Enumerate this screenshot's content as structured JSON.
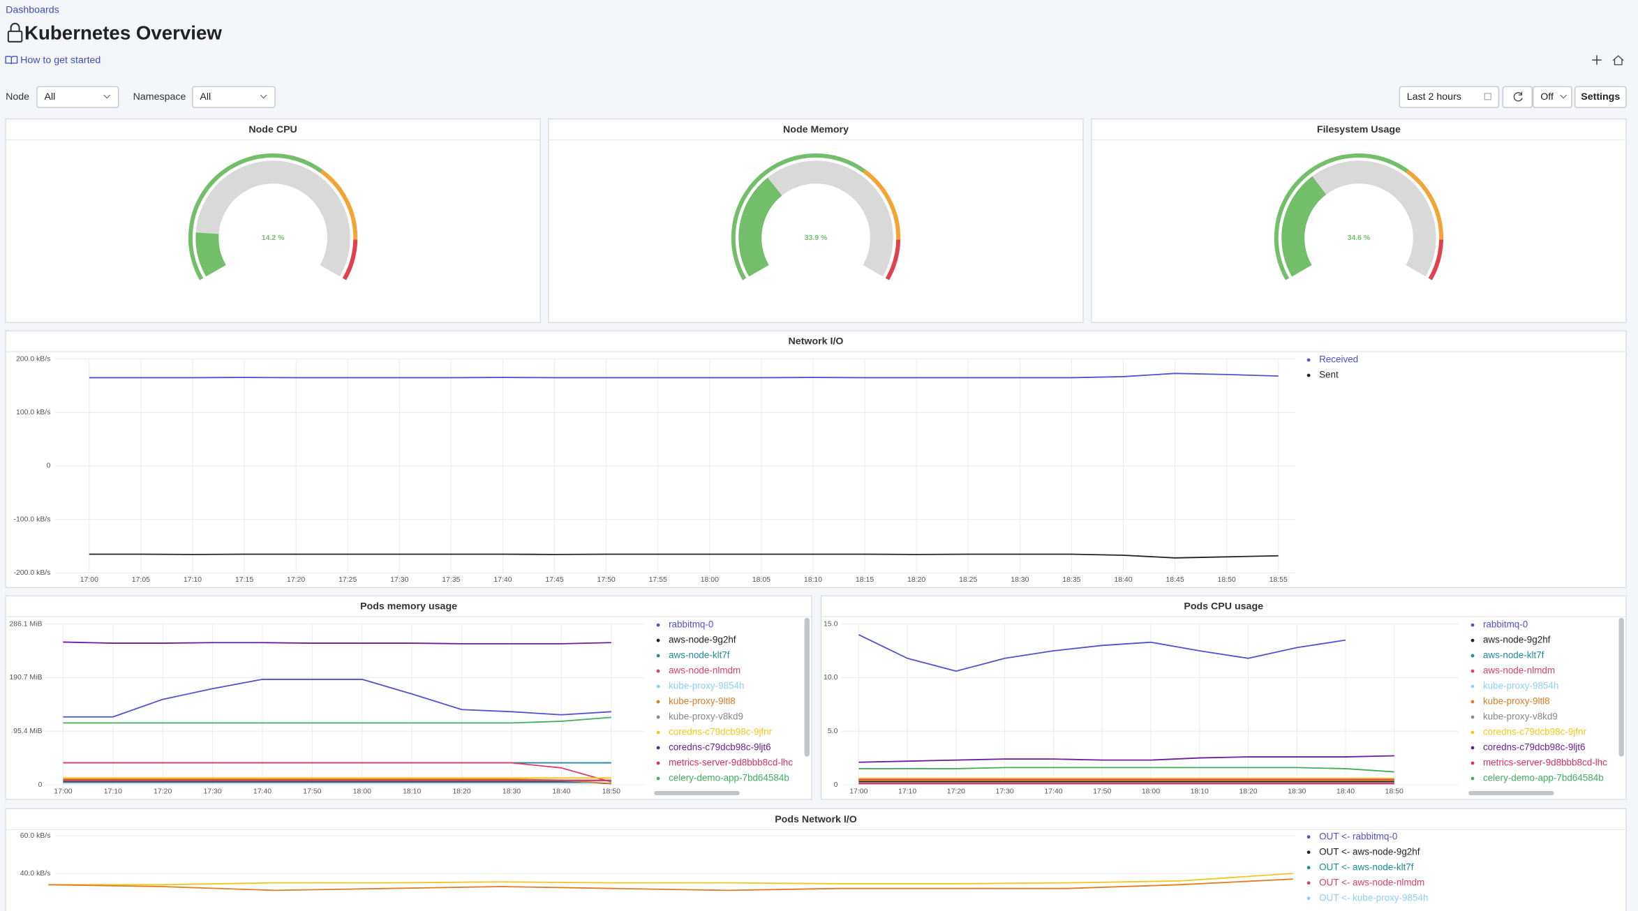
{
  "header": {
    "breadcrumb": "Dashboards",
    "title": "Kubernetes Overview",
    "help_link": "How to get started"
  },
  "filters": [
    {
      "label": "Node",
      "value": "All"
    },
    {
      "label": "Namespace",
      "value": "All"
    }
  ],
  "toolbar": {
    "time_range": "Last 2 hours",
    "refresh": "Off",
    "settings": "Settings"
  },
  "chart_data": [
    {
      "type": "gauge",
      "title": "Node CPU",
      "value": 14.2,
      "value_label": "14.2 %",
      "ylim": [
        0,
        100
      ],
      "thresholds": [
        {
          "value": 0,
          "color": "#73bf69"
        },
        {
          "value": 65,
          "color": "#f2a435"
        },
        {
          "value": 88,
          "color": "#e0424d"
        }
      ]
    },
    {
      "type": "gauge",
      "title": "Node Memory",
      "value": 33.9,
      "value_label": "33.9 %",
      "ylim": [
        0,
        100
      ],
      "thresholds": [
        {
          "value": 0,
          "color": "#73bf69"
        },
        {
          "value": 65,
          "color": "#f2a435"
        },
        {
          "value": 88,
          "color": "#e0424d"
        }
      ]
    },
    {
      "type": "gauge",
      "title": "Filesystem Usage",
      "value": 34.6,
      "value_label": "34.6 %",
      "ylim": [
        0,
        100
      ],
      "thresholds": [
        {
          "value": 0,
          "color": "#73bf69"
        },
        {
          "value": 65,
          "color": "#f2a435"
        },
        {
          "value": 88,
          "color": "#e0424d"
        }
      ]
    },
    {
      "type": "line",
      "title": "Network I/O",
      "x": [
        "17:00",
        "17:05",
        "17:10",
        "17:15",
        "17:20",
        "17:25",
        "17:30",
        "17:35",
        "17:40",
        "17:45",
        "17:50",
        "17:55",
        "18:00",
        "18:05",
        "18:10",
        "18:15",
        "18:20",
        "18:25",
        "18:30",
        "18:35",
        "18:40",
        "18:45",
        "18:50",
        "18:55"
      ],
      "ylim": [
        -200,
        200
      ],
      "yticks": [
        {
          "value": 200,
          "label": "200.0  kB/s"
        },
        {
          "value": 100,
          "label": "100.0  kB/s"
        },
        0,
        {
          "value": -100,
          "label": "-100.0  kB/s"
        },
        {
          "value": -200,
          "label": "-200.0  kB/s"
        }
      ],
      "grid": true,
      "series": [
        {
          "name": "Received",
          "color": "#5050d0",
          "values": [
            165,
            165,
            165,
            165.5,
            165,
            165,
            165,
            165,
            165.5,
            165,
            165,
            165,
            165,
            165,
            165.5,
            165,
            165,
            165,
            165,
            165,
            167,
            173,
            171,
            168
          ]
        },
        {
          "name": "Sent",
          "color": "#222222",
          "values": [
            -165,
            -165,
            -165.5,
            -165,
            -165,
            -165,
            -165,
            -165,
            -165,
            -165.5,
            -165,
            -165,
            -165,
            -165,
            -165,
            -165,
            -165.5,
            -165,
            -165,
            -165,
            -167,
            -172,
            -170,
            -168
          ]
        }
      ]
    },
    {
      "type": "line",
      "title": "Pods memory usage",
      "x": [
        "17:00",
        "17:10",
        "17:20",
        "17:30",
        "17:40",
        "17:50",
        "18:00",
        "18:10",
        "18:20",
        "18:30",
        "18:40",
        "18:50"
      ],
      "ylim": [
        0,
        286.1
      ],
      "yticks": [
        0,
        {
          "value": 95.4,
          "label": "95.4  MiB"
        },
        {
          "value": 190.7,
          "label": "190.7  MiB"
        },
        {
          "value": 286.1,
          "label": "286.1  MiB"
        }
      ],
      "grid": true,
      "series": [
        {
          "name": "rabbitmq-0",
          "color": "#5050d0",
          "values": [
            120.8,
            120.8,
            152,
            171,
            187.6,
            187.6,
            187.6,
            161.6,
            133.8,
            130,
            124.5,
            130
          ]
        },
        {
          "name": "aws-node-9g2hf",
          "color": "#222222",
          "values": [
            5,
            5,
            5,
            5,
            5,
            5,
            5,
            5,
            5,
            5,
            5,
            2
          ]
        },
        {
          "name": "aws-node-klt7f",
          "color": "#1f8a9e",
          "values": [
            39,
            39,
            39,
            39,
            39,
            39,
            39,
            39,
            39,
            39,
            39,
            39
          ]
        },
        {
          "name": "aws-node-nlmdm",
          "color": "#e03d6a",
          "values": [
            39,
            39,
            39,
            39,
            39,
            39,
            39,
            39,
            39,
            39,
            30,
            5
          ]
        },
        {
          "name": "kube-proxy-9854h",
          "color": "#8fd0f0",
          "values": [
            3,
            3,
            3,
            3,
            3,
            3,
            3,
            3,
            3,
            3,
            3,
            3
          ]
        },
        {
          "name": "kube-proxy-9ltl8",
          "color": "#e07b1f",
          "values": [
            10,
            10,
            10,
            10,
            10,
            10,
            10,
            10,
            10,
            10,
            8,
            2
          ]
        },
        {
          "name": "kube-proxy-v8kd9",
          "color": "#888888",
          "values": [
            7,
            7,
            7,
            7,
            7,
            7,
            7,
            7,
            7,
            7,
            7,
            7
          ]
        },
        {
          "name": "coredns-c79dcb98c-9jfnr",
          "color": "#f2c71d",
          "values": [
            12,
            12,
            12,
            12,
            12,
            12,
            12,
            12,
            12,
            12,
            12,
            12
          ]
        },
        {
          "name": "coredns-c79dcb98c-9ljt6",
          "color": "#6a1e9c",
          "values": [
            254,
            252,
            252,
            253,
            253,
            252,
            252,
            252,
            251,
            251,
            251,
            253
          ]
        },
        {
          "name": "metrics-server-9d8bbb8cd-lhc",
          "color": "#d8315b",
          "values": [
            8,
            8,
            8,
            8,
            8,
            8,
            8,
            8,
            8,
            8,
            8,
            8
          ]
        },
        {
          "name": "celery-demo-app-7bd64584b",
          "color": "#3fae5a",
          "values": [
            110,
            110,
            110,
            110,
            110,
            110,
            110,
            110,
            110,
            110,
            113,
            120
          ]
        }
      ]
    },
    {
      "type": "line",
      "title": "Pods CPU usage",
      "x": [
        "17:00",
        "17:10",
        "17:20",
        "17:30",
        "17:40",
        "17:50",
        "18:00",
        "18:10",
        "18:20",
        "18:30",
        "18:40",
        "18:50"
      ],
      "ylim": [
        0,
        15
      ],
      "yticks": [
        0,
        {
          "value": 5,
          "label": "5.0"
        },
        {
          "value": 10,
          "label": "10.0"
        },
        {
          "value": 15,
          "label": "15.0"
        }
      ],
      "grid": true,
      "series": [
        {
          "name": "rabbitmq-0",
          "color": "#5050d0",
          "values": [
            14.0,
            11.8,
            10.6,
            11.8,
            12.5,
            13.0,
            13.3,
            12.5,
            11.8,
            12.8,
            13.5,
            null
          ]
        },
        {
          "name": "aws-node-9g2hf",
          "color": "#222222",
          "values": [
            0.3,
            0.3,
            0.3,
            0.3,
            0.3,
            0.3,
            0.3,
            0.3,
            0.3,
            0.3,
            0.3,
            0.3
          ]
        },
        {
          "name": "aws-node-klt7f",
          "color": "#1f8a9e",
          "values": [
            0.4,
            0.4,
            0.4,
            0.4,
            0.4,
            0.4,
            0.4,
            0.4,
            0.4,
            0.4,
            0.4,
            0.4
          ]
        },
        {
          "name": "aws-node-nlmdm",
          "color": "#e03d6a",
          "values": [
            0.5,
            0.5,
            0.5,
            0.5,
            0.5,
            0.5,
            0.5,
            0.5,
            0.5,
            0.5,
            0.5,
            0.5
          ]
        },
        {
          "name": "kube-proxy-9854h",
          "color": "#8fd0f0",
          "values": [
            0.2,
            0.2,
            0.2,
            0.2,
            0.2,
            0.2,
            0.2,
            0.2,
            0.2,
            0.2,
            0.2,
            0.2
          ]
        },
        {
          "name": "kube-proxy-9ltl8",
          "color": "#e07b1f",
          "values": [
            0.4,
            0.4,
            0.4,
            0.4,
            0.4,
            0.4,
            0.4,
            0.4,
            0.4,
            0.4,
            0.4,
            0.4
          ]
        },
        {
          "name": "kube-proxy-v8kd9",
          "color": "#888888",
          "values": [
            0.2,
            0.2,
            0.2,
            0.2,
            0.2,
            0.2,
            0.2,
            0.2,
            0.2,
            0.2,
            0.2,
            0.2
          ]
        },
        {
          "name": "coredns-c79dcb98c-9jfnr",
          "color": "#f2c71d",
          "values": [
            0.6,
            0.6,
            0.6,
            0.6,
            0.6,
            0.6,
            0.6,
            0.6,
            0.6,
            0.6,
            0.6,
            0.6
          ]
        },
        {
          "name": "coredns-c79dcb98c-9ljt6",
          "color": "#6a1e9c",
          "values": [
            2.1,
            2.2,
            2.3,
            2.4,
            2.4,
            2.3,
            2.3,
            2.5,
            2.6,
            2.6,
            2.6,
            2.7
          ]
        },
        {
          "name": "metrics-server-9d8bbb8cd-lhc",
          "color": "#d8315b",
          "values": [
            0.1,
            0.1,
            0.1,
            0.1,
            0.1,
            0.1,
            0.1,
            0.1,
            0.1,
            0.1,
            0.1,
            0.1
          ]
        },
        {
          "name": "celery-demo-app-7bd64584b",
          "color": "#3fae5a",
          "values": [
            1.5,
            1.5,
            1.5,
            1.6,
            1.6,
            1.6,
            1.6,
            1.6,
            1.6,
            1.6,
            1.5,
            1.2
          ]
        }
      ]
    },
    {
      "type": "line",
      "title": "Pods Network I/O",
      "ylim": [
        0,
        60
      ],
      "yticks": [
        {
          "value": 60,
          "label": "60.0  kB/s"
        },
        {
          "value": 40,
          "label": "40.0  kB/s"
        }
      ],
      "grid": true,
      "series": [
        {
          "name": "OUT <- rabbitmq-0",
          "color": "#5050d0"
        },
        {
          "name": "OUT <- aws-node-9g2hf",
          "color": "#222222"
        },
        {
          "name": "OUT <- aws-node-klt7f",
          "color": "#1f8a9e"
        },
        {
          "name": "OUT <- aws-node-nlmdm",
          "color": "#e03d6a"
        },
        {
          "name": "OUT <- kube-proxy-9854h",
          "color": "#8fd0f0"
        },
        {
          "color": "#f2c71d",
          "values": [
            34,
            34,
            35,
            35,
            35.5,
            35,
            35,
            34.5,
            34.5,
            35,
            36,
            40
          ]
        },
        {
          "color": "#e07b1f",
          "values": [
            34,
            33,
            31,
            32,
            33,
            32,
            31,
            32,
            32,
            32,
            34,
            37
          ]
        }
      ]
    }
  ]
}
